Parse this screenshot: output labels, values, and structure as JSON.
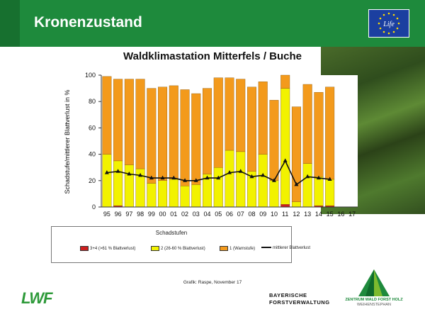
{
  "header": {
    "title": "Kronenzustand",
    "accent": "#1e8a3c"
  },
  "logos": {
    "eu": "LIFE",
    "lwf": "LWF",
    "bayern_line1": "BAYERISCHE",
    "bayern_line2": "FORSTVERWALTUNG",
    "zentrum_line1": "ZENTRUM WALD FORST HOLZ",
    "zentrum_line2": "WEIHENSTEPHAN"
  },
  "chart_data": {
    "type": "bar",
    "stacked": true,
    "title": "Waldklimastation Mitterfels / Buche",
    "ylabel": "Schadstufe/mittlerer Blattverlust in %",
    "xlabel": "",
    "ylim": [
      0,
      100
    ],
    "yticks": [
      0,
      20,
      40,
      60,
      80,
      100
    ],
    "categories": [
      "95",
      "96",
      "97",
      "98",
      "99",
      "00",
      "01",
      "02",
      "03",
      "04",
      "05",
      "06",
      "07",
      "08",
      "09",
      "10",
      "11",
      "12",
      "13",
      "14",
      "15",
      "16",
      "17"
    ],
    "series": [
      {
        "name": "3+4 (>61 % Blattverlust)",
        "color": "#cc1f1f",
        "values": [
          0,
          1,
          0,
          0,
          0,
          0,
          0,
          0,
          0,
          0,
          0,
          0,
          0,
          0,
          0,
          0,
          2,
          0,
          0,
          1,
          1,
          null,
          null
        ]
      },
      {
        "name": "2 (26-60 % Blattverlust)",
        "color": "#f2f200",
        "values": [
          40,
          34,
          32,
          29,
          18,
          20,
          21,
          16,
          17,
          25,
          30,
          43,
          42,
          27,
          40,
          20,
          88,
          4,
          33,
          22,
          20,
          null,
          null
        ]
      },
      {
        "name": "1 (Warnstufe)",
        "color": "#f39a1c",
        "values": [
          59,
          62,
          65,
          68,
          72,
          71,
          71,
          73,
          69,
          65,
          68,
          55,
          55,
          64,
          55,
          61,
          10,
          72,
          60,
          64,
          70,
          null,
          null
        ]
      },
      {
        "name": "mittlerer Blattverlust",
        "type": "line",
        "color": "#111111",
        "values": [
          26,
          27,
          25,
          24,
          22,
          22,
          22,
          20,
          20,
          22,
          22,
          26,
          27,
          23,
          24,
          20,
          35,
          17,
          23,
          22,
          21,
          null,
          null
        ]
      }
    ],
    "legend": {
      "title": "Schadstufen",
      "position": "bottom"
    },
    "grid": false
  },
  "source": "Grafik: Raspe, November 17"
}
